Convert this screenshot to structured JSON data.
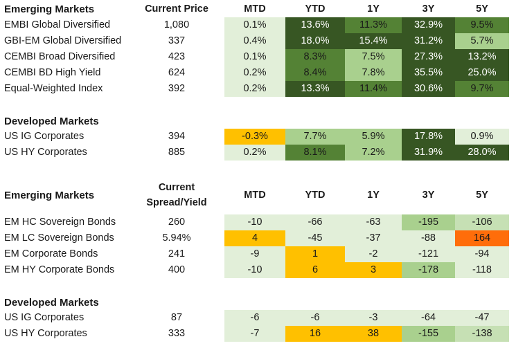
{
  "columns": [
    "MTD",
    "YTD",
    "1Y",
    "3Y",
    "5Y"
  ],
  "colors": {
    "pale_green": "#e2efd9",
    "light_green": "#a9d08e",
    "soft_green": "#c6e0b4",
    "mid_green": "#548235",
    "dark_green": "#375623",
    "amber": "#ffc000",
    "orange": "#ff6d0a"
  },
  "returns": {
    "em_header": "Emerging Markets",
    "price_header": "Current Price",
    "em_rows": [
      {
        "name": "EMBI Global Diversified",
        "price": "1,080",
        "values": [
          "0.1%",
          "13.6%",
          "11.3%",
          "32.9%",
          "9.5%"
        ],
        "shades": [
          "pale",
          "dark",
          "mid",
          "dark",
          "mid"
        ]
      },
      {
        "name": "GBI-EM Global Diversified",
        "price": "337",
        "values": [
          "0.4%",
          "18.0%",
          "15.4%",
          "31.2%",
          "5.7%"
        ],
        "shades": [
          "pale",
          "dark",
          "dark",
          "dark",
          "light"
        ]
      },
      {
        "name": "CEMBI Broad Diversified",
        "price": "423",
        "values": [
          "0.1%",
          "8.3%",
          "7.5%",
          "27.3%",
          "13.2%"
        ],
        "shades": [
          "pale",
          "mid",
          "light",
          "dark",
          "dark"
        ]
      },
      {
        "name": "CEMBI BD High Yield",
        "price": "624",
        "values": [
          "0.2%",
          "8.4%",
          "7.8%",
          "35.5%",
          "25.0%"
        ],
        "shades": [
          "pale",
          "mid",
          "light",
          "dark",
          "dark"
        ]
      },
      {
        "name": "Equal-Weighted Index",
        "price": "392",
        "values": [
          "0.2%",
          "13.3%",
          "11.4%",
          "30.6%",
          "9.7%"
        ],
        "shades": [
          "pale",
          "dark",
          "mid",
          "dark",
          "mid"
        ]
      }
    ],
    "dm_header": "Developed Markets",
    "dm_rows": [
      {
        "name": "US IG Corporates",
        "price": "394",
        "values": [
          "-0.3%",
          "7.7%",
          "5.9%",
          "17.8%",
          "0.9%"
        ],
        "shades": [
          "amber",
          "light",
          "light",
          "dark",
          "pale"
        ]
      },
      {
        "name": "US HY Corporates",
        "price": "885",
        "values": [
          "0.2%",
          "8.1%",
          "7.2%",
          "31.9%",
          "28.0%"
        ],
        "shades": [
          "pale",
          "mid",
          "light",
          "dark",
          "dark"
        ]
      }
    ]
  },
  "spreads": {
    "em_header": "Emerging Markets",
    "spread_header_line1": "Current",
    "spread_header_line2": "Spread/Yield",
    "em_rows": [
      {
        "name": "EM HC Sovereign Bonds",
        "price": "260",
        "values": [
          "-10",
          "-66",
          "-63",
          "-195",
          "-106"
        ],
        "shades": [
          "pale",
          "pale",
          "pale",
          "light",
          "lgreen2"
        ]
      },
      {
        "name": "EM LC Sovereign Bonds",
        "price": "5.94%",
        "values": [
          "4",
          "-45",
          "-37",
          "-88",
          "164"
        ],
        "shades": [
          "amber",
          "pale",
          "pale",
          "pale",
          "orange"
        ]
      },
      {
        "name": "EM Corporate Bonds",
        "price": "241",
        "values": [
          "-9",
          "1",
          "-2",
          "-121",
          "-94"
        ],
        "shades": [
          "pale",
          "amber",
          "pale",
          "pale",
          "pale"
        ]
      },
      {
        "name": "EM HY Corporate Bonds",
        "price": "400",
        "values": [
          "-10",
          "6",
          "3",
          "-178",
          "-118"
        ],
        "shades": [
          "pale",
          "amber",
          "amber",
          "light",
          "pale"
        ]
      }
    ],
    "dm_header": "Developed Markets",
    "dm_rows": [
      {
        "name": "US IG Corporates",
        "price": "87",
        "values": [
          "-6",
          "-6",
          "-3",
          "-64",
          "-47"
        ],
        "shades": [
          "pale",
          "pale",
          "pale",
          "pale",
          "pale"
        ]
      },
      {
        "name": "US HY Corporates",
        "price": "333",
        "values": [
          "-7",
          "16",
          "38",
          "-155",
          "-138"
        ],
        "shades": [
          "pale",
          "amber",
          "amber",
          "light",
          "lgreen2"
        ]
      }
    ]
  }
}
